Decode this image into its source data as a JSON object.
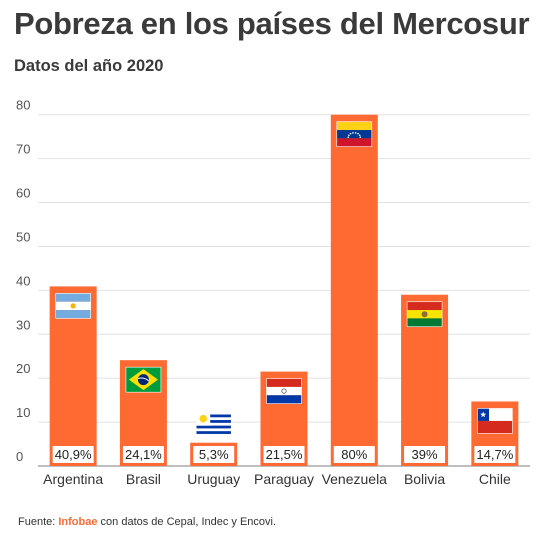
{
  "title": "Pobreza en los países del Mercosur",
  "subtitle": "Datos del año 2020",
  "footer": {
    "prefix": "Fuente: ",
    "brand": "Infobae",
    "suffix": " con datos de Cepal, Indec y Encovi."
  },
  "colors": {
    "bar": "#ff6a33",
    "grid": "#e2e2e2",
    "axis": "#555555",
    "label_bg": "#ffffff"
  },
  "chart_data": {
    "type": "bar",
    "categories": [
      "Argentina",
      "Brasil",
      "Uruguay",
      "Paraguay",
      "Venezuela",
      "Bolivia",
      "Chile"
    ],
    "values": [
      40.9,
      24.1,
      5.3,
      21.5,
      80,
      39,
      14.7
    ],
    "data_labels": [
      "40,9%",
      "24,1%",
      "5,3%",
      "21,5%",
      "80%",
      "39%",
      "14,7%"
    ],
    "flags": [
      "argentina-flag",
      "brazil-flag",
      "uruguay-flag",
      "paraguay-flag",
      "venezuela-flag",
      "bolivia-flag",
      "chile-flag"
    ],
    "yticks": [
      0,
      10,
      20,
      30,
      40,
      50,
      60,
      70,
      80
    ],
    "ylim": [
      0,
      80
    ],
    "grid": true,
    "legend": "none"
  }
}
